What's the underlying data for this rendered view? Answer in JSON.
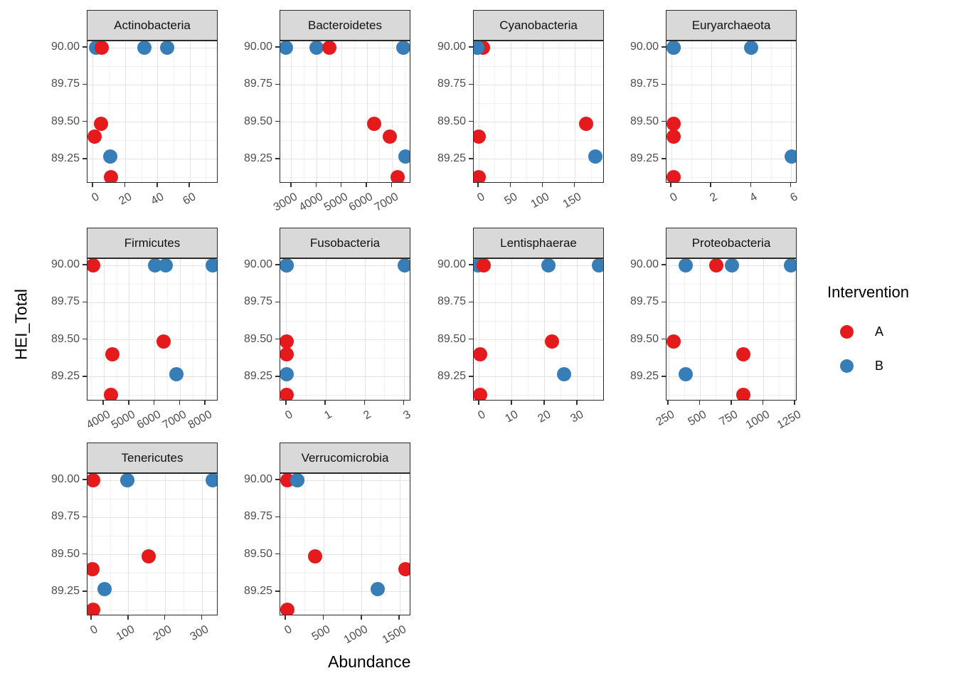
{
  "chart_data": {
    "type": "scatter",
    "xlabel": "Abundance",
    "ylabel": "HEI_Total",
    "grid": true,
    "legend": {
      "title": "Intervention",
      "position": "right",
      "entries": [
        {
          "label": "A",
          "color": "#E41A1C"
        },
        {
          "label": "B",
          "color": "#377EB8"
        }
      ]
    },
    "colors": {
      "A": "#E41A1C",
      "B": "#377EB8",
      "strip_bg": "#D9D9D9",
      "panel_border": "#2b2b2b",
      "grid_major": "#E3E3E3",
      "grid_minor": "#F1F1F1",
      "tick_text": "#4D4D4D"
    },
    "y_axis": {
      "ticks": [
        89.25,
        89.5,
        89.75,
        90.0
      ],
      "tick_labels": [
        "89.25",
        "89.50",
        "89.75",
        "90.00"
      ],
      "domain": [
        89.086,
        90.044
      ]
    },
    "facets": [
      {
        "name": "Actinobacteria",
        "x_ticks": [
          0,
          20,
          40,
          60
        ],
        "x_tick_labels": [
          "0",
          "20",
          "40",
          "60"
        ],
        "x_domain": [
          -3.5,
          77.5
        ],
        "points": [
          {
            "x": 1.8,
            "y": 90.0,
            "group": "B"
          },
          {
            "x": 5.3,
            "y": 90.0,
            "group": "A"
          },
          {
            "x": 31.6,
            "y": 90.0,
            "group": "B"
          },
          {
            "x": 45.6,
            "y": 90.0,
            "group": "B"
          },
          {
            "x": 4.8,
            "y": 89.49,
            "group": "A"
          },
          {
            "x": 0.9,
            "y": 89.4,
            "group": "A"
          },
          {
            "x": 10.4,
            "y": 89.27,
            "group": "B"
          },
          {
            "x": 11,
            "y": 89.13,
            "group": "A"
          }
        ]
      },
      {
        "name": "Bacteroidetes",
        "x_ticks": [
          3000,
          4000,
          5000,
          6000,
          7000
        ],
        "x_tick_labels": [
          "3000",
          "4000",
          "5000",
          "6000",
          "7000"
        ],
        "x_domain": [
          2550,
          7750
        ],
        "points": [
          {
            "x": 2770,
            "y": 90.0,
            "group": "B"
          },
          {
            "x": 4000,
            "y": 90.0,
            "group": "B"
          },
          {
            "x": 4510,
            "y": 90.0,
            "group": "A"
          },
          {
            "x": 7430,
            "y": 90.0,
            "group": "B"
          },
          {
            "x": 6290,
            "y": 89.49,
            "group": "A"
          },
          {
            "x": 6910,
            "y": 89.4,
            "group": "A"
          },
          {
            "x": 7510,
            "y": 89.27,
            "group": "B"
          },
          {
            "x": 7200,
            "y": 89.13,
            "group": "A"
          }
        ]
      },
      {
        "name": "Cyanobacteria",
        "x_ticks": [
          0,
          50,
          100,
          150
        ],
        "x_tick_labels": [
          "0",
          "50",
          "100",
          "150"
        ],
        "x_domain": [
          -8,
          196
        ],
        "points": [
          {
            "x": 6.6,
            "y": 90.0,
            "group": "A"
          },
          {
            "x": -2,
            "y": 90.0,
            "group": "B"
          },
          {
            "x": -2,
            "y": 90.0,
            "group": "B"
          },
          {
            "x": -2,
            "y": 90.0,
            "group": "B"
          },
          {
            "x": 167,
            "y": 89.49,
            "group": "A"
          },
          {
            "x": 0,
            "y": 89.4,
            "group": "A"
          },
          {
            "x": 182,
            "y": 89.27,
            "group": "B"
          },
          {
            "x": 0,
            "y": 89.13,
            "group": "A"
          }
        ]
      },
      {
        "name": "Euryarchaeota",
        "x_ticks": [
          0,
          2,
          4,
          6
        ],
        "x_tick_labels": [
          "0",
          "2",
          "4",
          "6"
        ],
        "x_domain": [
          -0.25,
          6.3
        ],
        "points": [
          {
            "x": 0.1,
            "y": 90.0,
            "group": "A"
          },
          {
            "x": 0.1,
            "y": 90.0,
            "group": "B"
          },
          {
            "x": 0.1,
            "y": 90.0,
            "group": "B"
          },
          {
            "x": 4,
            "y": 90.0,
            "group": "B"
          },
          {
            "x": 0.1,
            "y": 89.49,
            "group": "A"
          },
          {
            "x": 0.1,
            "y": 89.4,
            "group": "A"
          },
          {
            "x": 6,
            "y": 89.27,
            "group": "B"
          },
          {
            "x": 0.1,
            "y": 89.13,
            "group": "A"
          }
        ]
      },
      {
        "name": "Firmicutes",
        "x_ticks": [
          4000,
          5000,
          6000,
          7000,
          8000
        ],
        "x_tick_labels": [
          "4000",
          "5000",
          "6000",
          "7000",
          "8000"
        ],
        "x_domain": [
          3350,
          8500
        ],
        "points": [
          {
            "x": 3580,
            "y": 90.0,
            "group": "A"
          },
          {
            "x": 6020,
            "y": 90.0,
            "group": "B"
          },
          {
            "x": 6440,
            "y": 90.0,
            "group": "B"
          },
          {
            "x": 8270,
            "y": 90.0,
            "group": "B"
          },
          {
            "x": 6340,
            "y": 89.49,
            "group": "A"
          },
          {
            "x": 4340,
            "y": 89.4,
            "group": "A"
          },
          {
            "x": 6850,
            "y": 89.27,
            "group": "B"
          },
          {
            "x": 4280,
            "y": 89.13,
            "group": "A"
          }
        ]
      },
      {
        "name": "Fusobacteria",
        "x_ticks": [
          0,
          1,
          2,
          3
        ],
        "x_tick_labels": [
          "0",
          "1",
          "2",
          "3"
        ],
        "x_domain": [
          -0.16,
          3.17
        ],
        "points": [
          {
            "x": 0,
            "y": 90.0,
            "group": "A"
          },
          {
            "x": 0,
            "y": 90.0,
            "group": "B"
          },
          {
            "x": 0,
            "y": 90.0,
            "group": "B"
          },
          {
            "x": 3,
            "y": 90.0,
            "group": "B"
          },
          {
            "x": 0,
            "y": 89.49,
            "group": "A"
          },
          {
            "x": 0,
            "y": 89.4,
            "group": "A"
          },
          {
            "x": 0,
            "y": 89.27,
            "group": "B"
          },
          {
            "x": 0,
            "y": 89.13,
            "group": "A"
          }
        ]
      },
      {
        "name": "Lentisphaerae",
        "x_ticks": [
          0,
          10,
          20,
          30
        ],
        "x_tick_labels": [
          "0",
          "10",
          "20",
          "30"
        ],
        "x_domain": [
          -1.7,
          38.3
        ],
        "points": [
          {
            "x": -0.4,
            "y": 90.0,
            "group": "B"
          },
          {
            "x": 1.3,
            "y": 90.0,
            "group": "A"
          },
          {
            "x": 21.1,
            "y": 90.0,
            "group": "B"
          },
          {
            "x": 36.5,
            "y": 90.0,
            "group": "B"
          },
          {
            "x": 22.3,
            "y": 89.49,
            "group": "A"
          },
          {
            "x": 0.2,
            "y": 89.4,
            "group": "A"
          },
          {
            "x": 26,
            "y": 89.27,
            "group": "B"
          },
          {
            "x": 0.2,
            "y": 89.13,
            "group": "A"
          }
        ]
      },
      {
        "name": "Proteobacteria",
        "x_ticks": [
          250,
          500,
          750,
          1000,
          1250
        ],
        "x_tick_labels": [
          "250",
          "500",
          "750",
          "1000",
          "1250"
        ],
        "x_domain": [
          233,
          1267
        ],
        "points": [
          {
            "x": 387,
            "y": 90.0,
            "group": "B"
          },
          {
            "x": 628,
            "y": 90.0,
            "group": "A"
          },
          {
            "x": 750,
            "y": 90.0,
            "group": "B"
          },
          {
            "x": 1215,
            "y": 90.0,
            "group": "B"
          },
          {
            "x": 290,
            "y": 89.49,
            "group": "A"
          },
          {
            "x": 838,
            "y": 89.4,
            "group": "A"
          },
          {
            "x": 382,
            "y": 89.27,
            "group": "B"
          },
          {
            "x": 838,
            "y": 89.13,
            "group": "A"
          }
        ]
      },
      {
        "name": "Tenericutes",
        "x_ticks": [
          0,
          100,
          200,
          300
        ],
        "x_tick_labels": [
          "0",
          "100",
          "200",
          "300"
        ],
        "x_domain": [
          -12,
          344
        ],
        "points": [
          {
            "x": 4,
            "y": 90.0,
            "group": "A"
          },
          {
            "x": 97,
            "y": 90.0,
            "group": "B"
          },
          {
            "x": 97,
            "y": 90.0,
            "group": "B"
          },
          {
            "x": 328,
            "y": 90.0,
            "group": "B"
          },
          {
            "x": 155,
            "y": 89.49,
            "group": "A"
          },
          {
            "x": 2,
            "y": 89.4,
            "group": "A"
          },
          {
            "x": 35,
            "y": 89.27,
            "group": "B"
          },
          {
            "x": 4,
            "y": 89.13,
            "group": "A"
          }
        ]
      },
      {
        "name": "Verrucomicrobia",
        "x_ticks": [
          0,
          500,
          1000,
          1500
        ],
        "x_tick_labels": [
          "0",
          "500",
          "1000",
          "1500"
        ],
        "x_domain": [
          -74,
          1648
        ],
        "points": [
          {
            "x": 16,
            "y": 90.0,
            "group": "A"
          },
          {
            "x": 154,
            "y": 90.0,
            "group": "B"
          },
          {
            "x": 154,
            "y": 90.0,
            "group": "B"
          },
          {
            "x": 154,
            "y": 90.0,
            "group": "B"
          },
          {
            "x": 386,
            "y": 89.49,
            "group": "A"
          },
          {
            "x": 1574,
            "y": 89.4,
            "group": "A"
          },
          {
            "x": 1204,
            "y": 89.27,
            "group": "B"
          },
          {
            "x": 16,
            "y": 89.13,
            "group": "A"
          }
        ]
      }
    ]
  }
}
